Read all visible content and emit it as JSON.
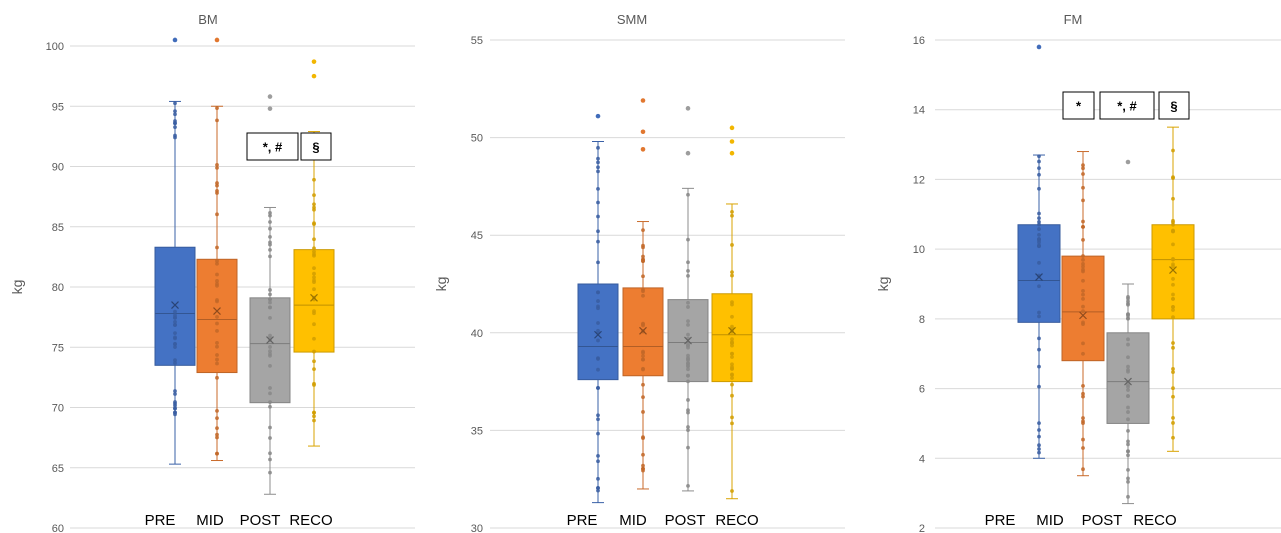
{
  "chart_data": [
    {
      "type": "boxplot",
      "title": "BM",
      "ylabel": "kg",
      "ylim": [
        60,
        100
      ],
      "yticks": [
        60,
        65,
        70,
        75,
        80,
        85,
        90,
        95,
        100
      ],
      "categories": [
        "PRE",
        "MID",
        "POST",
        "RECO"
      ],
      "colors": [
        "#4472C4",
        "#ED7D31",
        "#A5A5A5",
        "#FFC000"
      ],
      "boxes": [
        {
          "whisker_low": 65.3,
          "q1": 73.5,
          "median": 77.8,
          "mean": 78.5,
          "q3": 83.3,
          "whisker_high": 95.4,
          "outliers": [
            100.5
          ]
        },
        {
          "whisker_low": 65.6,
          "q1": 72.9,
          "median": 77.3,
          "mean": 78.0,
          "q3": 82.3,
          "whisker_high": 95.0,
          "outliers": [
            100.5
          ]
        },
        {
          "whisker_low": 62.8,
          "q1": 70.4,
          "median": 75.3,
          "mean": 75.6,
          "q3": 79.1,
          "whisker_high": 86.6,
          "outliers": [
            94.8,
            95.8
          ]
        },
        {
          "whisker_low": 66.8,
          "q1": 74.6,
          "median": 78.5,
          "mean": 79.1,
          "q3": 83.1,
          "whisker_high": 92.9,
          "outliers": [
            97.5,
            98.7
          ]
        }
      ],
      "annotations": [
        "*, #",
        "§"
      ]
    },
    {
      "type": "boxplot",
      "title": "SMM",
      "ylabel": "kg",
      "ylim": [
        30,
        55
      ],
      "yticks": [
        30,
        35,
        40,
        45,
        50,
        55
      ],
      "categories": [
        "PRE",
        "MID",
        "POST",
        "RECO"
      ],
      "colors": [
        "#4472C4",
        "#ED7D31",
        "#A5A5A5",
        "#FFC000"
      ],
      "boxes": [
        {
          "whisker_low": 31.3,
          "q1": 37.6,
          "median": 39.3,
          "mean": 39.9,
          "q3": 42.5,
          "whisker_high": 49.8,
          "outliers": [
            51.1
          ]
        },
        {
          "whisker_low": 32.0,
          "q1": 37.8,
          "median": 39.3,
          "mean": 40.1,
          "q3": 42.3,
          "whisker_high": 45.7,
          "outliers": [
            49.4,
            50.3,
            51.9
          ]
        },
        {
          "whisker_low": 31.9,
          "q1": 37.5,
          "median": 39.5,
          "mean": 39.6,
          "q3": 41.7,
          "whisker_high": 47.4,
          "outliers": [
            49.2,
            51.5
          ]
        },
        {
          "whisker_low": 31.5,
          "q1": 37.5,
          "median": 39.9,
          "mean": 40.1,
          "q3": 42.0,
          "whisker_high": 46.6,
          "outliers": [
            49.2,
            49.8,
            50.5
          ]
        }
      ],
      "annotations": []
    },
    {
      "type": "boxplot",
      "title": "FM",
      "ylabel": "kg",
      "ylim": [
        2,
        16
      ],
      "yticks": [
        2,
        4,
        6,
        8,
        10,
        12,
        14,
        16
      ],
      "categories": [
        "PRE",
        "MID",
        "POST",
        "RECO"
      ],
      "colors": [
        "#4472C4",
        "#ED7D31",
        "#A5A5A5",
        "#FFC000"
      ],
      "boxes": [
        {
          "whisker_low": 4.0,
          "q1": 7.9,
          "median": 9.1,
          "mean": 9.2,
          "q3": 10.7,
          "whisker_high": 12.7,
          "outliers": [
            15.8
          ]
        },
        {
          "whisker_low": 3.5,
          "q1": 6.8,
          "median": 8.2,
          "mean": 8.1,
          "q3": 9.8,
          "whisker_high": 12.8,
          "outliers": []
        },
        {
          "whisker_low": 2.7,
          "q1": 5.0,
          "median": 6.2,
          "mean": 6.2,
          "q3": 7.6,
          "whisker_high": 9.0,
          "outliers": [
            12.5
          ]
        },
        {
          "whisker_low": 4.2,
          "q1": 8.0,
          "median": 9.7,
          "mean": 9.4,
          "q3": 10.7,
          "whisker_high": 13.5,
          "outliers": []
        }
      ],
      "annotations": [
        "*",
        "*, #",
        "§"
      ]
    }
  ]
}
